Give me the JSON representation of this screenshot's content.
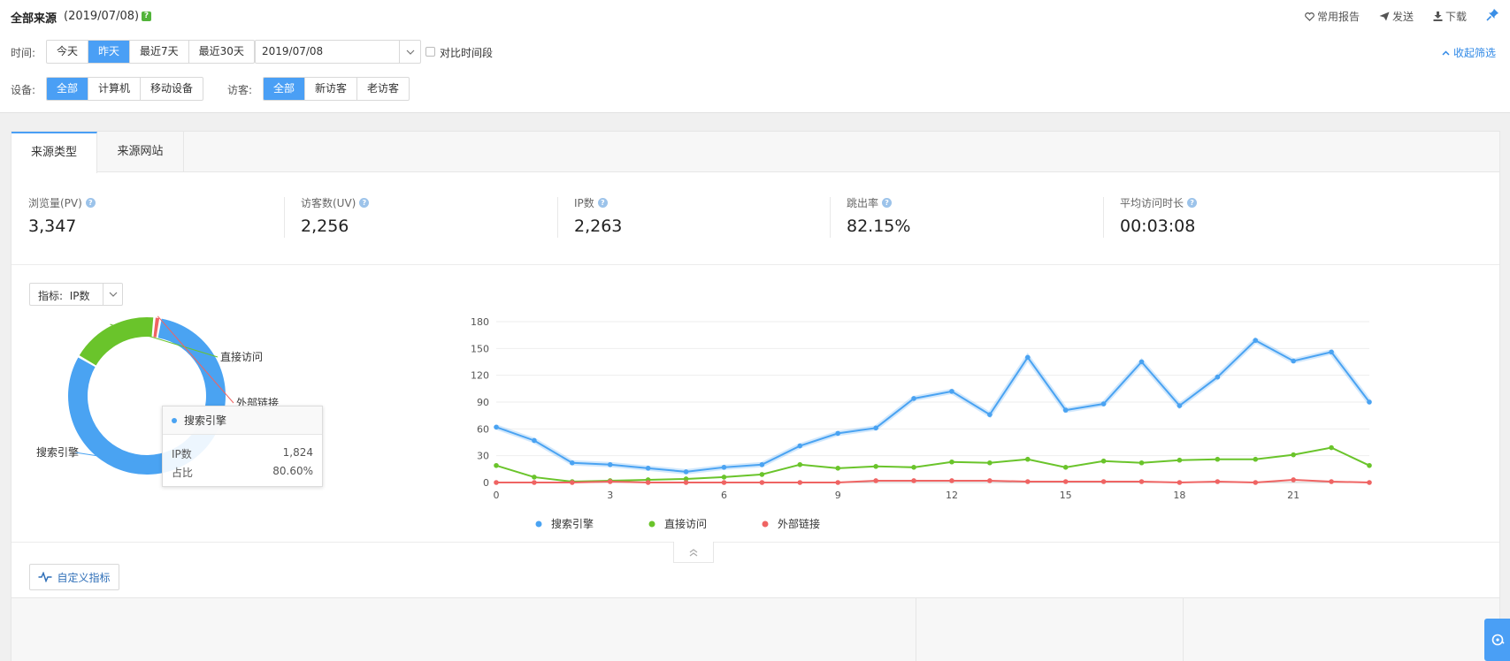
{
  "header": {
    "title": "全部来源",
    "date": "(2019/07/08)",
    "help": "?",
    "actions": {
      "favorite": "常用报告",
      "send": "发送",
      "download": "下载"
    }
  },
  "filters": {
    "time_label": "时间:",
    "time_options": [
      "今天",
      "昨天",
      "最近7天",
      "最近30天"
    ],
    "time_active": 1,
    "date_value": "2019/07/08",
    "compare_label": "对比时间段",
    "collapse_label": "收起筛选",
    "device_label": "设备:",
    "device_options": [
      "全部",
      "计算机",
      "移动设备"
    ],
    "device_active": 0,
    "visitor_label": "访客:",
    "visitor_options": [
      "全部",
      "新访客",
      "老访客"
    ],
    "visitor_active": 0
  },
  "tabs": [
    "来源类型",
    "来源网站"
  ],
  "metrics": [
    {
      "label": "浏览量(PV)",
      "value": "3,347"
    },
    {
      "label": "访客数(UV)",
      "value": "2,256"
    },
    {
      "label": "IP数",
      "value": "2,263"
    },
    {
      "label": "跳出率",
      "value": "82.15%"
    },
    {
      "label": "平均访问时长",
      "value": "00:03:08"
    }
  ],
  "indicator": {
    "label": "指标:",
    "value": "IP数"
  },
  "tooltip": {
    "title": "搜索引擎",
    "rows": [
      {
        "label": "IP数",
        "value": "1,824"
      },
      {
        "label": "占比",
        "value": "80.60%"
      }
    ]
  },
  "custom_metric_label": "自定义指标",
  "colors": {
    "search": "#4aa3f2",
    "direct": "#6ac42b",
    "external": "#ef6463",
    "accent": "#4a9ff5"
  },
  "chart_data": [
    {
      "type": "pie",
      "variant": "donut",
      "labels": [
        "搜索引擎",
        "直接访问",
        "外部链接"
      ],
      "values": [
        1824,
        411,
        28
      ]
    },
    {
      "type": "line",
      "x": [
        0,
        1,
        2,
        3,
        4,
        5,
        6,
        7,
        8,
        9,
        10,
        11,
        12,
        13,
        14,
        15,
        16,
        17,
        18,
        19,
        20,
        21,
        22,
        23
      ],
      "xticks": [
        0,
        3,
        6,
        9,
        12,
        15,
        18,
        21
      ],
      "yticks": [
        0,
        30,
        60,
        90,
        120,
        150,
        180
      ],
      "ylim": [
        0,
        180
      ],
      "grid": true,
      "legend": "bottom-left",
      "series": [
        {
          "name": "搜索引擎",
          "values": [
            62,
            47,
            22,
            20,
            16,
            12,
            17,
            20,
            41,
            55,
            61,
            94,
            102,
            76,
            140,
            81,
            88,
            135,
            86,
            118,
            159,
            136,
            146,
            90
          ]
        },
        {
          "name": "直接访问",
          "values": [
            19,
            6,
            1,
            2,
            3,
            4,
            6,
            9,
            20,
            16,
            18,
            17,
            23,
            22,
            26,
            17,
            24,
            22,
            25,
            26,
            26,
            31,
            39,
            19
          ]
        },
        {
          "name": "外部链接",
          "values": [
            0,
            0,
            0,
            1,
            0,
            0,
            0,
            0,
            0,
            0,
            2,
            2,
            2,
            2,
            1,
            1,
            1,
            1,
            0,
            1,
            0,
            3,
            1,
            0
          ]
        }
      ]
    }
  ]
}
